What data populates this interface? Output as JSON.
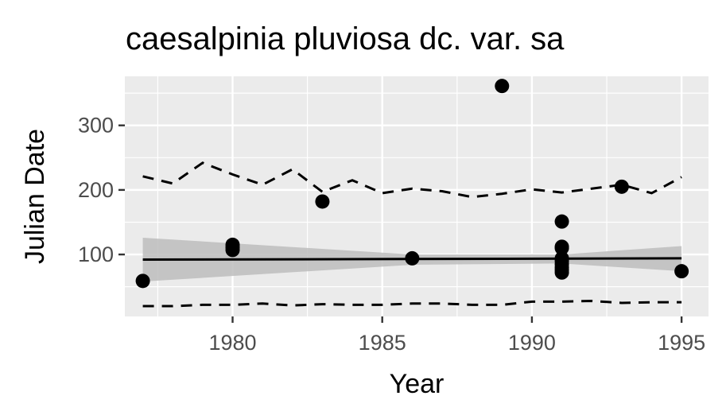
{
  "chart_data": {
    "type": "scatter",
    "title": "caesalpinia pluviosa dc. var. sa",
    "xlabel": "Year",
    "ylabel": "Julian Date",
    "xlim": [
      1976.4,
      1995.9
    ],
    "ylim": [
      4,
      376
    ],
    "x_ticks": [
      1980,
      1985,
      1990,
      1995
    ],
    "y_ticks": [
      100,
      200,
      300
    ],
    "grid": true,
    "points": [
      {
        "x": 1977,
        "y": 59
      },
      {
        "x": 1980,
        "y": 107
      },
      {
        "x": 1980,
        "y": 111
      },
      {
        "x": 1980,
        "y": 115
      },
      {
        "x": 1983,
        "y": 182
      },
      {
        "x": 1986,
        "y": 94
      },
      {
        "x": 1989,
        "y": 361
      },
      {
        "x": 1991,
        "y": 151
      },
      {
        "x": 1991,
        "y": 112
      },
      {
        "x": 1991,
        "y": 110
      },
      {
        "x": 1991,
        "y": 94
      },
      {
        "x": 1991,
        "y": 90
      },
      {
        "x": 1991,
        "y": 85
      },
      {
        "x": 1991,
        "y": 80
      },
      {
        "x": 1991,
        "y": 76
      },
      {
        "x": 1991,
        "y": 72
      },
      {
        "x": 1993,
        "y": 205
      },
      {
        "x": 1995,
        "y": 74
      }
    ],
    "trend_line": [
      {
        "x": 1977,
        "y": 92
      },
      {
        "x": 1995,
        "y": 94
      }
    ],
    "confidence_band": {
      "x": [
        1977,
        1986,
        1991,
        1995
      ],
      "upper": [
        126,
        100,
        100,
        113
      ],
      "lower": [
        58,
        84,
        86,
        74
      ]
    },
    "upper_dashed": {
      "x": [
        1977,
        1978,
        1979,
        1980,
        1981,
        1982,
        1983,
        1984,
        1985,
        1986,
        1987,
        1988,
        1989,
        1990,
        1991,
        1992,
        1993,
        1994,
        1995
      ],
      "y": [
        221,
        210,
        242,
        224,
        208,
        232,
        197,
        215,
        195,
        202,
        198,
        189,
        194,
        201,
        196,
        202,
        208,
        195,
        220
      ]
    },
    "lower_dashed": {
      "x": [
        1977,
        1978,
        1979,
        1980,
        1981,
        1982,
        1983,
        1984,
        1985,
        1986,
        1987,
        1988,
        1989,
        1990,
        1991,
        1992,
        1993,
        1994,
        1995
      ],
      "y": [
        20,
        20,
        22,
        22,
        24,
        21,
        23,
        22,
        22,
        24,
        24,
        22,
        22,
        27,
        27,
        28,
        25,
        26,
        26
      ]
    },
    "colors": {
      "panel": "#ebebeb",
      "grid": "#ffffff",
      "points": "#000000",
      "band": "#bdbdbd",
      "line": "#000000"
    }
  }
}
